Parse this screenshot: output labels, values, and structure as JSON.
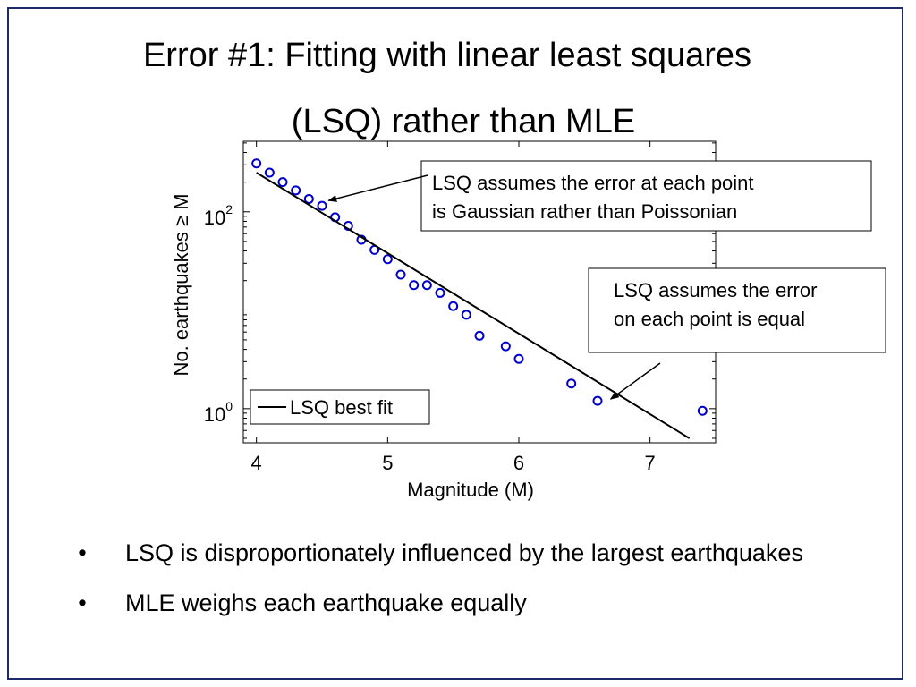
{
  "slide": {
    "title_line_1": "Error #1: Fitting with linear least squares",
    "title_line_2": "(LSQ) rather than MLE",
    "bullets": [
      "LSQ is disproportionately influenced by the largest earthquakes",
      "MLE weighs each earthquake equally"
    ],
    "bullet_glyph": "•"
  },
  "colors": {
    "border": "#1f2a6b",
    "marker": "#0000cc",
    "fit_line": "#000000"
  },
  "chart_data": {
    "type": "scatter",
    "title": "",
    "xlabel": "Magnitude (M)",
    "ylabel": "No. earthquakes ≥ M",
    "yscale": "log",
    "xlim": [
      3.9,
      7.5
    ],
    "ylim": [
      0.45,
      520
    ],
    "x_ticks": [
      4,
      5,
      6,
      7
    ],
    "y_ticks": [
      {
        "value": 1,
        "base": "10",
        "exp": "0"
      },
      {
        "value": 100,
        "base": "10",
        "exp": "2"
      }
    ],
    "grid": false,
    "legend": {
      "position": "bottom-left",
      "entries": [
        "LSQ best fit"
      ]
    },
    "series": [
      {
        "kind": "markers",
        "marker": "circle-open",
        "points": [
          {
            "x": 4.0,
            "y": 310
          },
          {
            "x": 4.1,
            "y": 250
          },
          {
            "x": 4.2,
            "y": 200
          },
          {
            "x": 4.3,
            "y": 165
          },
          {
            "x": 4.4,
            "y": 135
          },
          {
            "x": 4.5,
            "y": 115
          },
          {
            "x": 4.6,
            "y": 88
          },
          {
            "x": 4.7,
            "y": 72
          },
          {
            "x": 4.8,
            "y": 52
          },
          {
            "x": 4.9,
            "y": 41
          },
          {
            "x": 5.0,
            "y": 33
          },
          {
            "x": 5.1,
            "y": 23
          },
          {
            "x": 5.2,
            "y": 18
          },
          {
            "x": 5.3,
            "y": 18
          },
          {
            "x": 5.4,
            "y": 15
          },
          {
            "x": 5.5,
            "y": 11
          },
          {
            "x": 5.6,
            "y": 9
          },
          {
            "x": 5.7,
            "y": 5.5
          },
          {
            "x": 5.9,
            "y": 4.3
          },
          {
            "x": 6.0,
            "y": 3.2
          },
          {
            "x": 6.4,
            "y": 1.8
          },
          {
            "x": 6.6,
            "y": 1.2
          },
          {
            "x": 7.4,
            "y": 0.95
          }
        ]
      },
      {
        "name": "LSQ best fit",
        "kind": "line",
        "points": [
          {
            "x": 4.0,
            "y": 250
          },
          {
            "x": 7.3,
            "y": 0.5
          }
        ]
      }
    ],
    "annotations": [
      {
        "id": "gaussian",
        "lines": [
          "LSQ assumes the error at each point",
          "is Gaussian rather than Poissonian"
        ],
        "arrow_to": {
          "x": 4.55,
          "y": 130
        }
      },
      {
        "id": "equal",
        "lines": [
          "LSQ assumes the error",
          "on each point is equal"
        ],
        "arrow_to": {
          "x": 6.7,
          "y": 1.25
        }
      }
    ]
  }
}
